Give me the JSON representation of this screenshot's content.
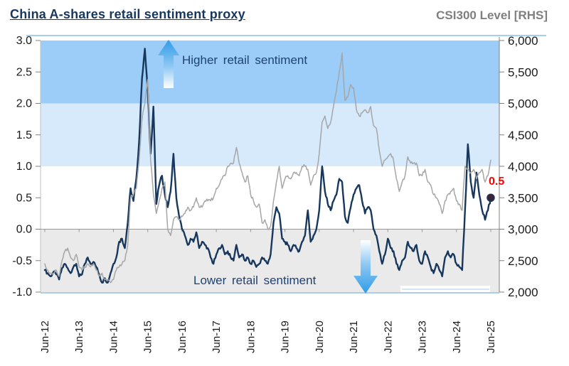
{
  "chart_data": {
    "type": "line",
    "title": "China A-shares retail sentiment proxy",
    "right_axis_title": "CSI300 Level [RHS]",
    "frequency": "monthly",
    "x_start": "Jun-12",
    "x_end": "Jun-25",
    "x_tick_labels": [
      "Jun-12",
      "Jun-13",
      "Jun-14",
      "Jun-15",
      "Jun-16",
      "Jun-17",
      "Jun-18",
      "Jun-19",
      "Jun-20",
      "Jun-21",
      "Jun-22",
      "Jun-23",
      "Jun-24",
      "Jun-25"
    ],
    "left_axis": {
      "range": [
        -1.0,
        3.0
      ],
      "tick_step": 0.5,
      "tick_labels": [
        "3.0",
        "2.5",
        "2.0",
        "1.5",
        "1.0",
        "0.5",
        "0.0",
        "-0.5",
        "-1.0"
      ]
    },
    "right_axis": {
      "range": [
        2000,
        6000
      ],
      "tick_step": 500,
      "tick_labels": [
        "6,000",
        "5,500",
        "5,000",
        "4,500",
        "4,000",
        "3,500",
        "3,000",
        "2,500",
        "2,000"
      ]
    },
    "shaded_zones": [
      {
        "name": "high-sentiment-zone",
        "from": 2.0,
        "to": 3.0,
        "color": "#9BCDF8"
      },
      {
        "name": "elevated-sentiment-zone",
        "from": 1.0,
        "to": 2.0,
        "color": "#D6EAFB"
      },
      {
        "name": "low-sentiment-zone",
        "from": -1.0,
        "to": 0.0,
        "color": "#EAEAEA"
      }
    ],
    "series": [
      {
        "name": "Retail sentiment proxy",
        "axis": "left",
        "color": "#17375D",
        "width": 2.4,
        "values": [
          -0.65,
          -0.7,
          -0.75,
          -0.68,
          -0.72,
          -0.8,
          -0.62,
          -0.55,
          -0.62,
          -0.7,
          -0.6,
          -0.55,
          -0.75,
          -0.72,
          -0.55,
          -0.45,
          -0.55,
          -0.52,
          -0.6,
          -0.72,
          -0.85,
          -0.78,
          -0.85,
          -0.7,
          -0.55,
          -0.45,
          -0.2,
          -0.15,
          -0.3,
          0.1,
          0.65,
          0.45,
          0.8,
          1.4,
          2.4,
          2.87,
          2.2,
          1.2,
          1.95,
          0.4,
          0.7,
          0.85,
          0.55,
          0.35,
          0.6,
          1.2,
          0.5,
          0.2,
          0.0,
          -0.1,
          -0.25,
          -0.15,
          -0.2,
          -0.05,
          -0.3,
          -0.2,
          -0.25,
          -0.3,
          -0.45,
          -0.55,
          -0.4,
          -0.3,
          -0.25,
          -0.4,
          -0.35,
          -0.45,
          -0.5,
          -0.25,
          -0.45,
          -0.4,
          -0.5,
          -0.45,
          -0.55,
          -0.5,
          -0.6,
          -0.55,
          -0.45,
          -0.5,
          -0.55,
          -0.4,
          0.1,
          0.35,
          0.25,
          -0.15,
          -0.2,
          -0.25,
          -0.35,
          -0.25,
          -0.3,
          -0.35,
          -0.2,
          -0.1,
          0.3,
          -0.2,
          -0.1,
          0.0,
          0.3,
          1.0,
          0.6,
          0.4,
          0.3,
          0.45,
          0.55,
          0.8,
          0.75,
          0.2,
          0.1,
          0.35,
          0.55,
          0.65,
          0.7,
          0.45,
          0.25,
          0.35,
          0.3,
          0.0,
          -0.1,
          -0.35,
          -0.55,
          -0.4,
          -0.15,
          -0.3,
          -0.35,
          -0.55,
          -0.65,
          -0.5,
          -0.45,
          -0.2,
          -0.3,
          -0.35,
          -0.25,
          -0.5,
          -0.55,
          -0.35,
          -0.45,
          -0.6,
          -0.7,
          -0.55,
          -0.65,
          -0.75,
          -0.45,
          -0.35,
          -0.45,
          -0.4,
          -0.55,
          -0.6,
          -0.65,
          0.3,
          1.35,
          0.75,
          0.5,
          0.9,
          0.55,
          0.3,
          0.15,
          0.3,
          0.5
        ]
      },
      {
        "name": "CSI300 Level",
        "axis": "right",
        "color": "#A6A6A6",
        "width": 1.5,
        "values": [
          2450,
          2350,
          2300,
          2300,
          2350,
          2250,
          2500,
          2650,
          2700,
          2550,
          2500,
          2600,
          2400,
          2350,
          2400,
          2450,
          2400,
          2450,
          2350,
          2250,
          2300,
          2200,
          2200,
          2150,
          2200,
          2350,
          2400,
          2450,
          2500,
          2750,
          3500,
          3550,
          3650,
          4100,
          4750,
          5000,
          5380,
          4100,
          3550,
          3250,
          3450,
          3650,
          3750,
          3000,
          2900,
          3150,
          3200,
          3150,
          3200,
          3250,
          3350,
          3300,
          3350,
          3500,
          3350,
          3350,
          3450,
          3450,
          3450,
          3500,
          3650,
          3700,
          3800,
          3850,
          4000,
          4050,
          4050,
          4300,
          4050,
          3900,
          3750,
          3850,
          3550,
          3450,
          3350,
          3400,
          3100,
          3150,
          3000,
          3050,
          3450,
          3750,
          4000,
          3650,
          3800,
          3850,
          3800,
          3900,
          3900,
          3850,
          4000,
          4000,
          3950,
          3700,
          3850,
          3900,
          4200,
          4700,
          4800,
          4600,
          4700,
          4950,
          5200,
          5500,
          5800,
          5050,
          5100,
          5300,
          5250,
          4900,
          4800,
          4850,
          4900,
          4850,
          4950,
          4650,
          4600,
          4250,
          4000,
          4100,
          4150,
          4200,
          4100,
          3800,
          3600,
          3750,
          3850,
          4150,
          4050,
          4050,
          4050,
          3850,
          3850,
          3950,
          3750,
          3700,
          3550,
          3500,
          3400,
          3250,
          3450,
          3550,
          3600,
          3650,
          3450,
          3400,
          3300,
          4000,
          3950,
          3900,
          3950,
          3800,
          3900,
          3950,
          3750,
          3850,
          4100
        ]
      }
    ],
    "annotations": {
      "higher": "Higher retail sentiment",
      "lower": "Lower retail sentiment",
      "last_value_label": "0.5",
      "last_value_marker_color": "#3B2433"
    },
    "colors": {
      "title_left": "#17375D",
      "title_right": "#7F7F7F",
      "rule_blue": "#A9CDEE",
      "axis_line": "#808080",
      "zero_line": "#999999",
      "tick_text": "#1A1A1A",
      "annotation_text": "#1F4270",
      "arrow_blue": "#2F9BE8",
      "last_value_red": "#FF0000"
    },
    "legend": "none",
    "grid": "off"
  }
}
